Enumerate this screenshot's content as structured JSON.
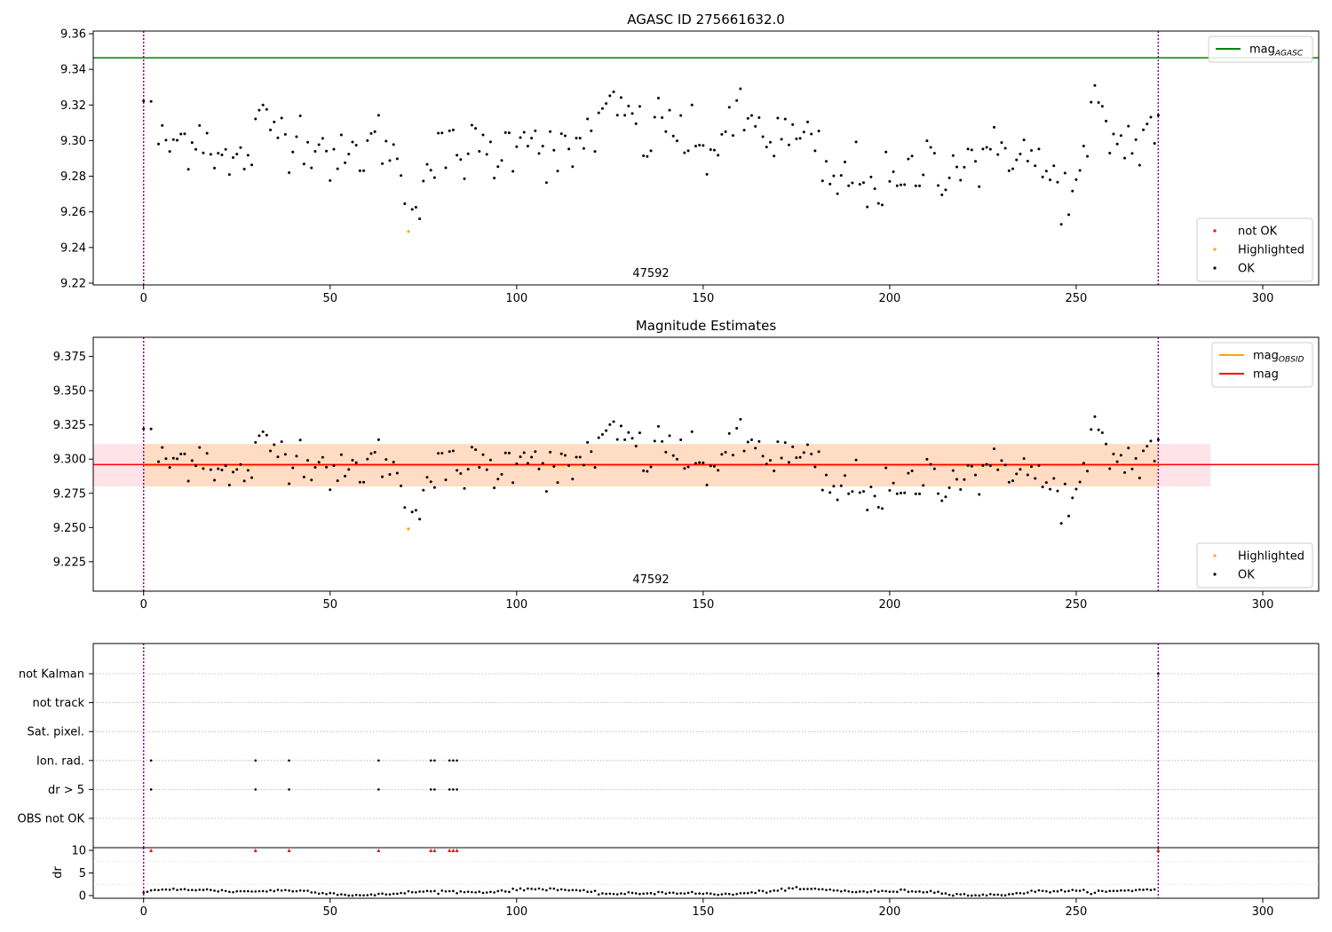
{
  "chart_data": [
    {
      "type": "scatter",
      "title": "AGASC ID 275661632.0",
      "xlabel": "",
      "ylabel": "",
      "xlim": [
        -13.5,
        315
      ],
      "ylim": [
        9.219,
        9.3615
      ],
      "xticks": [
        0,
        50,
        100,
        150,
        200,
        250,
        300
      ],
      "yticks": [
        9.22,
        9.24,
        9.26,
        9.28,
        9.3,
        9.32,
        9.34,
        9.36
      ],
      "ytick_decimals": 2,
      "annotation": {
        "text": "47592",
        "x": 136
      },
      "vlines": [
        0,
        272
      ],
      "mag_agasc": 9.3465,
      "grid": false,
      "legend_top": {
        "placement": "upper right",
        "entries": [
          {
            "label": "mag",
            "sub": "AGASC",
            "color": "#008000"
          }
        ]
      },
      "legend_bottom": {
        "placement": "lower right",
        "entries": [
          {
            "label": "not OK",
            "color": "#ff0000"
          },
          {
            "label": "Highlighted",
            "color": "#ffa500"
          },
          {
            "label": "OK",
            "color": "#000000"
          }
        ]
      },
      "highlighted": [
        {
          "x": 71,
          "y": 9.249
        }
      ]
    },
    {
      "type": "scatter",
      "title": "Magnitude Estimates",
      "xlabel": "",
      "ylabel": "",
      "xlim": [
        -13.5,
        315
      ],
      "ylim": [
        9.2035,
        9.389
      ],
      "xticks": [
        0,
        50,
        100,
        150,
        200,
        250,
        300
      ],
      "yticks": [
        9.225,
        9.25,
        9.275,
        9.3,
        9.325,
        9.35,
        9.375
      ],
      "ytick_decimals": 3,
      "annotation": {
        "text": "47592",
        "x": 136
      },
      "vlines": [
        0,
        272
      ],
      "mag": 9.2955,
      "mag_obsid": 9.2955,
      "band_outer": {
        "y0": 9.28,
        "y1": 9.311,
        "x0": -13.5,
        "x1": 286,
        "color": "#ffc0cb"
      },
      "band_inner": {
        "y0": 9.28,
        "y1": 9.311,
        "x0": 0,
        "x1": 272,
        "color": "#ffdab9"
      },
      "grid": false,
      "legend_top": {
        "placement": "upper right",
        "entries": [
          {
            "label": "mag",
            "sub": "OBSID",
            "color": "#ffa500"
          },
          {
            "label": "mag",
            "sub": "",
            "color": "#ff0000"
          }
        ]
      },
      "legend_bottom": {
        "placement": "lower right",
        "entries": [
          {
            "label": "Highlighted",
            "color": "#ffa500"
          },
          {
            "label": "OK",
            "color": "#000000"
          }
        ]
      },
      "highlighted": [
        {
          "x": 71,
          "y": 9.249
        }
      ]
    },
    {
      "type": "scatter",
      "title": "",
      "xlabel": "",
      "ylabel": "",
      "xlim": [
        -13.5,
        315
      ],
      "categories": [
        "not Kalman",
        "not track",
        "Sat. pixel.",
        "Ion. rad.",
        "dr > 5",
        "OBS not OK"
      ],
      "vlines": [
        0,
        272
      ],
      "grid": true,
      "flag_points": {
        "Ion. rad.": [
          2,
          30,
          39,
          63,
          77,
          78,
          82,
          83,
          84
        ],
        "dr > 5": [
          2,
          30,
          39,
          63,
          77,
          78,
          82,
          83,
          84
        ],
        "not Kalman": [
          272
        ]
      }
    },
    {
      "type": "scatter",
      "title": "",
      "xlabel": "",
      "ylabel": "dr",
      "xlim": [
        -13.5,
        315
      ],
      "ylim": [
        -0.6,
        10.6
      ],
      "xticks": [
        0,
        50,
        100,
        150,
        200,
        250,
        300
      ],
      "yticks": [
        0,
        5,
        10
      ],
      "ytick_decimals": 0,
      "vlines": [
        0,
        272
      ],
      "clipped_points": [
        2,
        30,
        39,
        63,
        77,
        78,
        82,
        83,
        84,
        272
      ],
      "clip_value": 10
    }
  ]
}
